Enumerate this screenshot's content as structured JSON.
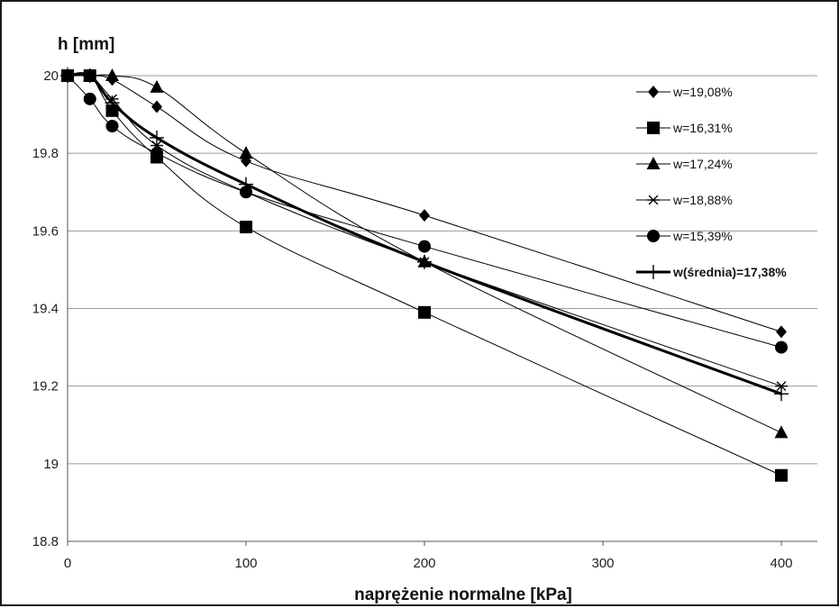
{
  "chart_data": {
    "type": "line",
    "title": "",
    "xlabel": "naprężenie normalne [kPa]",
    "ylabel": "h [mm]",
    "xlim": [
      0,
      400
    ],
    "ylim": [
      18.8,
      20
    ],
    "x_ticks": [
      "0",
      "100",
      "200",
      "300",
      "400"
    ],
    "y_ticks": [
      "18.8",
      "19",
      "19.2",
      "19.4",
      "19.6",
      "19.8",
      "20"
    ],
    "grid": "horizontal",
    "legend_position": "top-right",
    "series": [
      {
        "name": "w=19,08%",
        "marker": "diamond",
        "color": "#000000",
        "x": [
          0,
          12.5,
          25,
          50,
          100,
          200,
          400
        ],
        "y": [
          20.0,
          20.0,
          19.99,
          19.92,
          19.78,
          19.64,
          19.34
        ]
      },
      {
        "name": "w=16,31%",
        "marker": "square",
        "color": "#000000",
        "x": [
          0,
          12.5,
          25,
          50,
          100,
          200,
          400
        ],
        "y": [
          20.0,
          20.0,
          19.91,
          19.79,
          19.61,
          19.39,
          18.97
        ]
      },
      {
        "name": "w=17,24%",
        "marker": "triangle",
        "color": "#000000",
        "x": [
          0,
          12.5,
          25,
          50,
          100,
          200,
          400
        ],
        "y": [
          20.0,
          20.0,
          20.0,
          19.97,
          19.8,
          19.52,
          19.08
        ]
      },
      {
        "name": "w=18,88%",
        "marker": "asterisk",
        "color": "#000000",
        "x": [
          0,
          12.5,
          25,
          50,
          100,
          200,
          400
        ],
        "y": [
          20.0,
          20.0,
          19.94,
          19.82,
          19.7,
          19.52,
          19.2
        ]
      },
      {
        "name": "w=15,39%",
        "marker": "circle",
        "color": "#000000",
        "x": [
          0,
          12.5,
          25,
          50,
          100,
          200,
          400
        ],
        "y": [
          20.0,
          19.94,
          19.87,
          19.8,
          19.7,
          19.56,
          19.3
        ]
      },
      {
        "name": "w(średnia)=17,38%",
        "marker": "plus",
        "color": "#000000",
        "bold": true,
        "x": [
          0,
          12.5,
          25,
          50,
          100,
          200,
          400
        ],
        "y": [
          20.0,
          20.0,
          19.93,
          19.84,
          19.72,
          19.52,
          19.18
        ]
      }
    ]
  }
}
